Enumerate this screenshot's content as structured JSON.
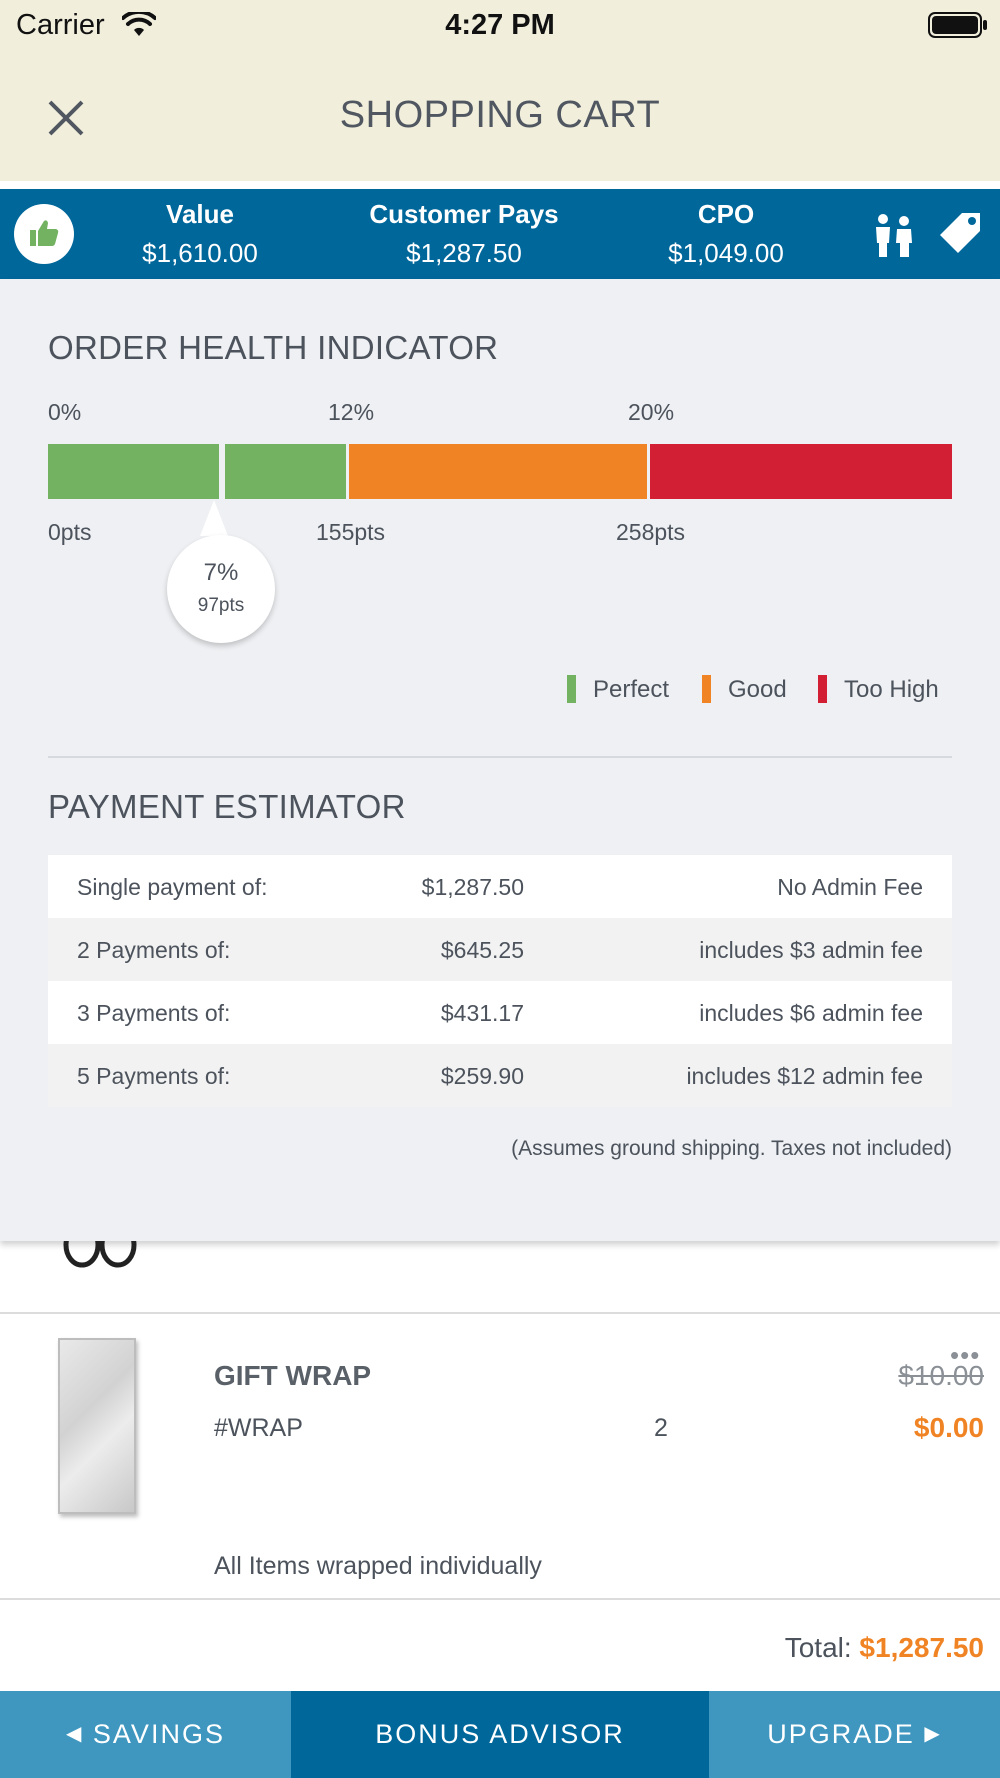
{
  "status_bar": {
    "carrier": "Carrier",
    "time": "4:27 PM"
  },
  "nav": {
    "title": "SHOPPING CART",
    "close_icon": "close-icon"
  },
  "summary": {
    "value_label": "Value",
    "value": "$1,610.00",
    "pays_label": "Customer Pays",
    "pays": "$1,287.50",
    "cpo_label": "CPO",
    "cpo": "$1,049.00",
    "icons": [
      "thumbs-up-icon",
      "people-icon",
      "tag-icon"
    ]
  },
  "health": {
    "title": "ORDER HEALTH INDICATOR",
    "pct_labels": [
      "0%",
      "12%",
      "20%"
    ],
    "pts_labels": [
      "0pts",
      "155pts",
      "258pts"
    ],
    "marker": {
      "percent": "7%",
      "points": "97pts"
    },
    "legend": [
      {
        "label": "Perfect",
        "color": "#72b261"
      },
      {
        "label": "Good",
        "color": "#f08424"
      },
      {
        "label": "Too High",
        "color": "#d21f33"
      }
    ]
  },
  "estimator": {
    "title": "PAYMENT ESTIMATOR",
    "rows": [
      {
        "label": "Single payment of:",
        "amount": "$1,287.50",
        "note": "No Admin Fee"
      },
      {
        "label": "2 Payments of:",
        "amount": "$645.25",
        "note": "includes $3 admin fee"
      },
      {
        "label": "3 Payments of:",
        "amount": "$431.17",
        "note": "includes $6 admin fee"
      },
      {
        "label": "5 Payments of:",
        "amount": "$259.90",
        "note": "includes $12 admin fee"
      }
    ],
    "footnote": "(Assumes ground shipping. Taxes not included)"
  },
  "item": {
    "name": "GIFT WRAP",
    "sku": "#WRAP",
    "qty": "2",
    "original_price": "$10.00",
    "price": "$0.00",
    "note": "All Items wrapped individually",
    "more": "•••"
  },
  "total": {
    "label": "Total: ",
    "amount": "$1,287.50"
  },
  "bottom_bar": {
    "savings": "SAVINGS",
    "bonus": "BONUS ADVISOR",
    "upgrade": "UPGRADE"
  },
  "colors": {
    "brand_blue": "#00679b",
    "light_blue": "#3f97c0",
    "accent_orange": "#f08424",
    "cream": "#f1eedc"
  }
}
